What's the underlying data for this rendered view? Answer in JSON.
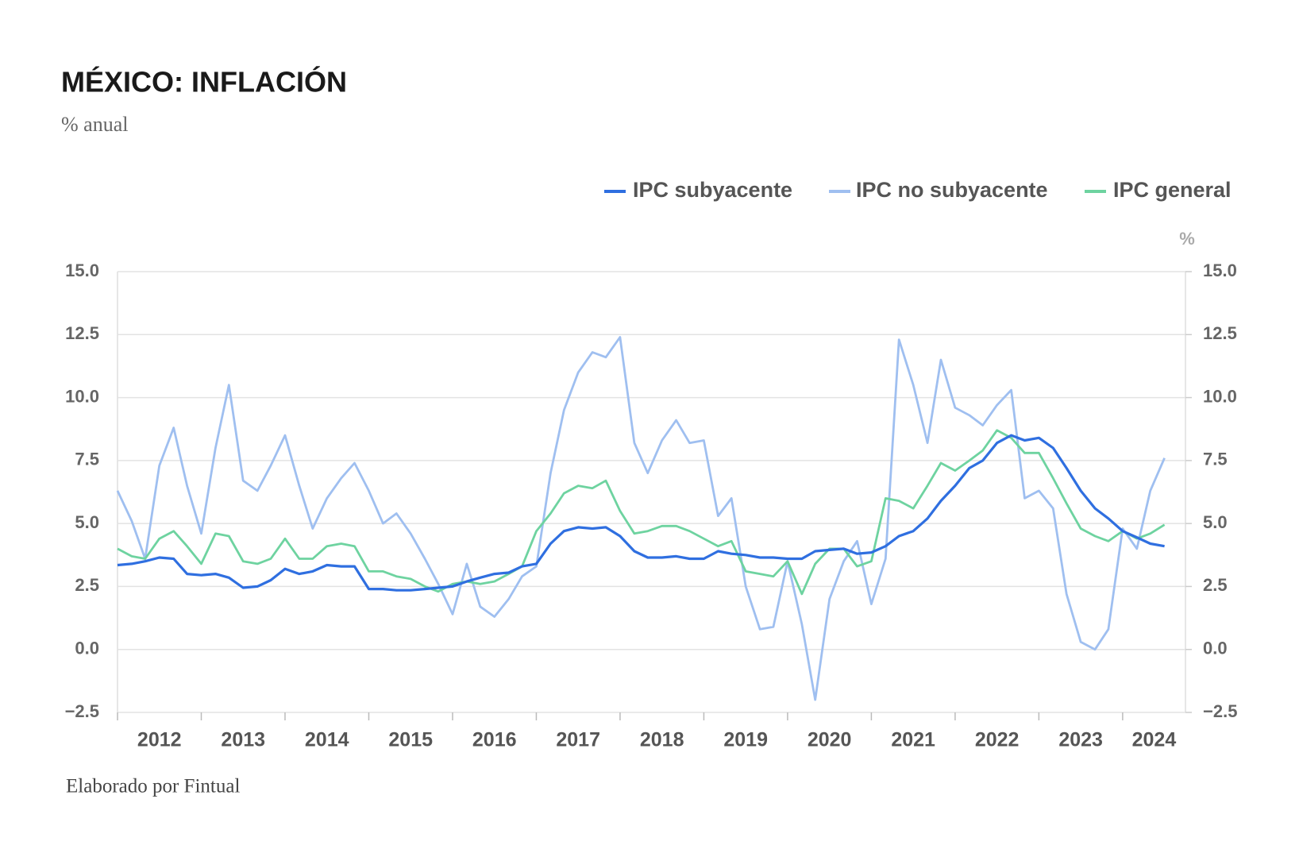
{
  "chart_data": {
    "type": "line",
    "title": "MÉXICO: INFLACIÓN",
    "subtitle": "% anual",
    "source": "Elaborado por Fintual",
    "y2label": "%",
    "x": [
      2012,
      2012.17,
      2012.33,
      2012.5,
      2012.67,
      2012.83,
      2013,
      2013.17,
      2013.33,
      2013.5,
      2013.67,
      2013.83,
      2014,
      2014.17,
      2014.33,
      2014.5,
      2014.67,
      2014.83,
      2015,
      2015.17,
      2015.33,
      2015.5,
      2015.67,
      2015.83,
      2016,
      2016.17,
      2016.33,
      2016.5,
      2016.67,
      2016.83,
      2017,
      2017.17,
      2017.33,
      2017.5,
      2017.67,
      2017.83,
      2018,
      2018.17,
      2018.33,
      2018.5,
      2018.67,
      2018.83,
      2019,
      2019.17,
      2019.33,
      2019.5,
      2019.67,
      2019.83,
      2020,
      2020.17,
      2020.33,
      2020.5,
      2020.67,
      2020.83,
      2021,
      2021.17,
      2021.33,
      2021.5,
      2021.67,
      2021.83,
      2022,
      2022.17,
      2022.33,
      2022.5,
      2022.67,
      2022.83,
      2023,
      2023.17,
      2023.33,
      2023.5,
      2023.67,
      2023.83,
      2024,
      2024.17,
      2024.33,
      2024.5
    ],
    "xlim": [
      2012,
      2024.75
    ],
    "xticks": [
      2012,
      2013,
      2014,
      2015,
      2016,
      2017,
      2018,
      2019,
      2020,
      2021,
      2022,
      2023,
      2024
    ],
    "series": [
      {
        "name": "IPC subyacente",
        "color": "#2f6fe0",
        "values": [
          3.35,
          3.4,
          3.5,
          3.65,
          3.6,
          3.0,
          2.95,
          3.0,
          2.85,
          2.45,
          2.5,
          2.75,
          3.2,
          3.0,
          3.1,
          3.35,
          3.3,
          3.3,
          2.4,
          2.4,
          2.35,
          2.35,
          2.4,
          2.45,
          2.5,
          2.7,
          2.85,
          3.0,
          3.05,
          3.3,
          3.4,
          4.2,
          4.7,
          4.85,
          4.8,
          4.85,
          4.5,
          3.9,
          3.65,
          3.65,
          3.7,
          3.6,
          3.6,
          3.9,
          3.8,
          3.75,
          3.65,
          3.65,
          3.6,
          3.6,
          3.9,
          3.95,
          4.0,
          3.8,
          3.85,
          4.1,
          4.5,
          4.7,
          5.2,
          5.9,
          6.5,
          7.2,
          7.5,
          8.2,
          8.5,
          8.3,
          8.4,
          8.0,
          7.2,
          6.3,
          5.6,
          5.2,
          4.7,
          4.45,
          4.2,
          4.1
        ]
      },
      {
        "name": "IPC no subyacente",
        "color": "#9fbff0",
        "values": [
          6.3,
          5.1,
          3.6,
          7.3,
          8.8,
          6.5,
          4.6,
          8.0,
          10.5,
          6.7,
          6.3,
          7.3,
          8.5,
          6.5,
          4.8,
          6.0,
          6.8,
          7.4,
          6.3,
          5.0,
          5.4,
          4.6,
          3.6,
          2.6,
          1.4,
          3.4,
          1.7,
          1.3,
          2.0,
          2.9,
          3.3,
          7.0,
          9.5,
          11.0,
          11.8,
          11.6,
          12.4,
          8.2,
          7.0,
          8.3,
          9.1,
          8.2,
          8.3,
          5.3,
          6.0,
          2.5,
          0.8,
          0.9,
          3.5,
          1.0,
          -2.0,
          2.0,
          3.5,
          4.3,
          1.8,
          3.6,
          12.3,
          10.5,
          8.2,
          11.5,
          9.6,
          9.3,
          8.9,
          9.7,
          10.3,
          6.0,
          6.3,
          5.6,
          2.2,
          0.3,
          0.0,
          0.8,
          4.8,
          4.0,
          6.3,
          7.6
        ]
      },
      {
        "name": "IPC general",
        "color": "#6ed3a0",
        "values": [
          4.0,
          3.7,
          3.6,
          4.4,
          4.7,
          4.1,
          3.4,
          4.6,
          4.5,
          3.5,
          3.4,
          3.6,
          4.4,
          3.6,
          3.6,
          4.1,
          4.2,
          4.1,
          3.1,
          3.1,
          2.9,
          2.8,
          2.5,
          2.3,
          2.6,
          2.7,
          2.6,
          2.7,
          3.0,
          3.3,
          4.7,
          5.4,
          6.2,
          6.5,
          6.4,
          6.7,
          5.5,
          4.6,
          4.7,
          4.9,
          4.9,
          4.7,
          4.4,
          4.1,
          4.3,
          3.1,
          3.0,
          2.9,
          3.5,
          2.2,
          3.4,
          4.0,
          4.0,
          3.3,
          3.5,
          6.0,
          5.9,
          5.6,
          6.5,
          7.4,
          7.1,
          7.5,
          7.9,
          8.7,
          8.4,
          7.8,
          7.8,
          6.8,
          5.8,
          4.8,
          4.5,
          4.3,
          4.7,
          4.4,
          4.6,
          4.95
        ]
      }
    ],
    "ylim": [
      -2.5,
      15
    ],
    "yticks": [
      {
        "value": -2.5,
        "label": "−2.5"
      },
      {
        "value": 0,
        "label": "0.0"
      },
      2.5,
      {
        "value": 5,
        "label": "5.0"
      },
      7.5,
      {
        "value": 10,
        "label": "10.0"
      },
      12.5,
      {
        "value": 15,
        "label": "15.0"
      }
    ],
    "y2lim": [
      -2.5,
      15
    ],
    "y2ticks": [
      {
        "value": -2.5,
        "label": "−2.5"
      },
      {
        "value": 0,
        "label": "0.0"
      },
      2.5,
      {
        "value": 5,
        "label": "5.0"
      },
      7.5,
      {
        "value": 10,
        "label": "10.0"
      },
      12.5,
      {
        "value": 15,
        "label": "15.0"
      }
    ],
    "grid": true,
    "legend": "top-right"
  }
}
